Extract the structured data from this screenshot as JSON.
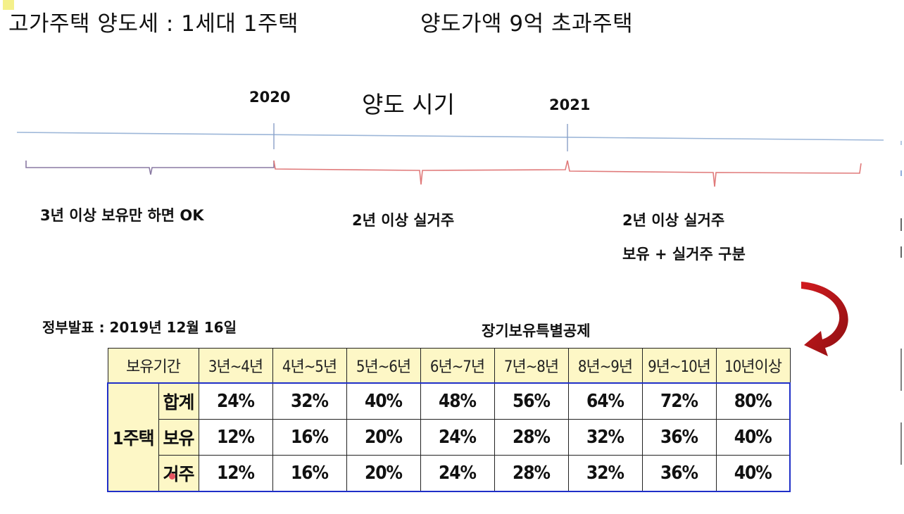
{
  "header": {
    "title": "고가주택 양도세 : 1세대 1주택",
    "subtitle": "양도가액 9억 초과주택"
  },
  "timeline": {
    "title": "양도 시기",
    "year_2020": "2020",
    "year_2021": "2021",
    "periods": [
      {
        "label": "3년 이상 보유만 하면 OK"
      },
      {
        "label": "2년 이상 실거주"
      },
      {
        "label": "2년 이상 실거주",
        "label2": "보유 + 실거주 구분"
      }
    ],
    "colors": {
      "axis": "#9cb6d8",
      "brace_left": "#8a7aa3",
      "brace_right": "#e07a7a",
      "arrow": "#c0181c"
    }
  },
  "announcement": "정부발표 : 2019년 12월 16일",
  "table": {
    "title": "장기보유특별공제",
    "period_header": "보유기간",
    "columns": [
      "3년~4년",
      "4년~5년",
      "5년~6년",
      "6년~7년",
      "7년~8년",
      "8년~9년",
      "9년~10년",
      "10년이상"
    ],
    "house_type": "1주택",
    "rows": [
      {
        "label": "합계",
        "values": [
          "24%",
          "32%",
          "40%",
          "48%",
          "56%",
          "64%",
          "72%",
          "80%"
        ]
      },
      {
        "label": "보유",
        "values": [
          "12%",
          "16%",
          "20%",
          "24%",
          "28%",
          "32%",
          "36%",
          "40%"
        ]
      },
      {
        "label": "거주",
        "values": [
          "12%",
          "16%",
          "20%",
          "24%",
          "28%",
          "32%",
          "36%",
          "40%"
        ]
      }
    ],
    "colors": {
      "header_bg": "#fdf7c6",
      "border_accent": "#1f2fc8"
    }
  }
}
